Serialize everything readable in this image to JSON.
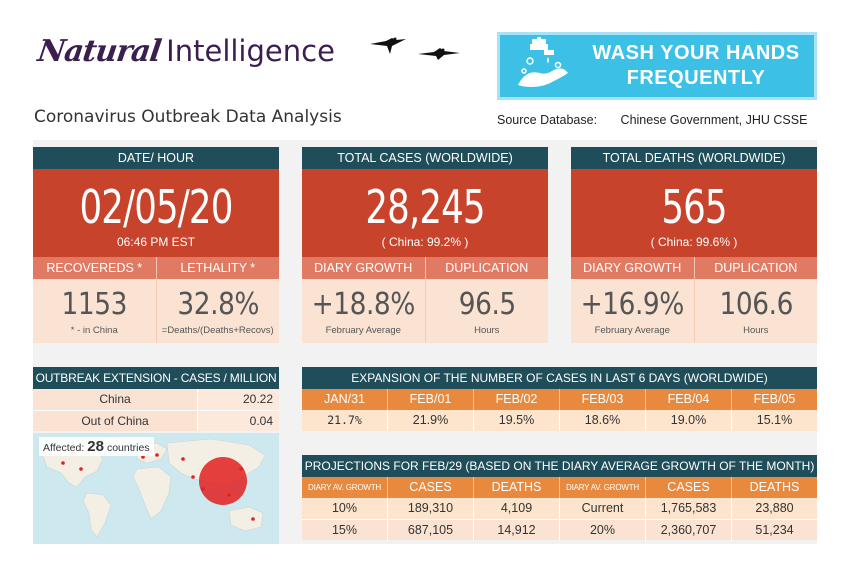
{
  "header": {
    "logo_script": "Natural",
    "logo_rest": "Intelligence",
    "subtitle": "Coronavirus Outbreak Data Analysis",
    "source_label": "Source Database:",
    "source_value": "Chinese Government, JHU CSSE",
    "banner_line1": "WASH YOUR HANDS",
    "banner_line2": "FREQUENTLY",
    "banner_icon": "hand-washing-icon",
    "birds_icon": "flying-birds-icon"
  },
  "colors": {
    "panel_header": "#1f4e5a",
    "panel_big": "#c8432b",
    "panel_sub": "#e07a63",
    "panel_values": "#fbe3d3",
    "table_head": "#e8893e",
    "banner": "#3cc0e6",
    "logo": "#3a1f4f"
  },
  "date_panel": {
    "title": "DATE/ HOUR",
    "date": "02/05/20",
    "time": "06:46 PM EST",
    "label_left": "RECOVEREDS *",
    "label_right": "LETHALITY *",
    "value_left": "1153",
    "value_right": "32.8%",
    "note_left": "* - in China",
    "note_right": "=Deaths/(Deaths+Recovs)"
  },
  "cases_panel": {
    "title": "TOTAL CASES (WORLDWIDE)",
    "total": "28,245",
    "china_share": "( China: 99.2% )",
    "label_left": "DIARY GROWTH",
    "label_right": "DUPLICATION",
    "value_left": "+18.8%",
    "value_right": "96.5",
    "note_left": "February Average",
    "note_right": "Hours"
  },
  "deaths_panel": {
    "title": "TOTAL DEATHS (WORLDWIDE)",
    "total": "565",
    "china_share": "( China: 99.6% )",
    "label_left": "DIARY GROWTH",
    "label_right": "DUPLICATION",
    "value_left": "+16.9%",
    "value_right": "106.6",
    "note_left": "February Average",
    "note_right": "Hours"
  },
  "extension": {
    "title": "OUTBREAK EXTENSION - CASES / MILLION",
    "rows": [
      {
        "name": "China",
        "value": "20.22"
      },
      {
        "name": "Out of China",
        "value": "0.04"
      }
    ],
    "affected_label": "Affected:",
    "affected_count": "28",
    "affected_unit": "countries"
  },
  "expansion": {
    "title": "EXPANSION OF THE NUMBER OF CASES IN LAST 6 DAYS (WORLDWIDE)",
    "headers": [
      "JAN/31",
      "FEB/01",
      "FEB/02",
      "FEB/03",
      "FEB/04",
      "FEB/05"
    ],
    "values": [
      "21.7%",
      "21.9%",
      "19.5%",
      "18.6%",
      "19.0%",
      "15.1%"
    ]
  },
  "projections": {
    "title": "PROJECTIONS FOR FEB/29 (BASED ON THE DIARY AVERAGE GROWTH OF THE MONTH)",
    "headers": [
      "DIARY AV. GROWTH",
      "CASES",
      "DEATHS",
      "DIARY AV. GROWTH",
      "CASES",
      "DEATHS"
    ],
    "rows": [
      [
        "10%",
        "189,310",
        "4,109",
        "Current",
        "1,765,583",
        "23,880"
      ],
      [
        "15%",
        "687,105",
        "14,912",
        "20%",
        "2,360,707",
        "51,234"
      ]
    ]
  }
}
